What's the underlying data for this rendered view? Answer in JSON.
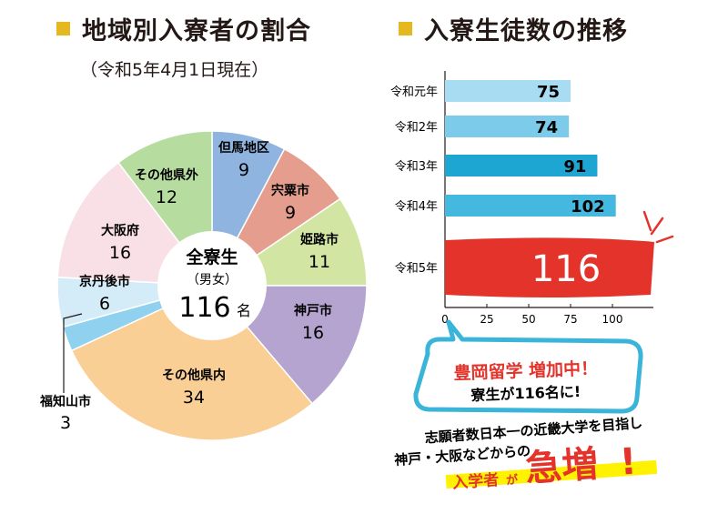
{
  "pie_section": {
    "title": "地域別入寮者の割合",
    "subtitle": "（令和5年4月1日現在）",
    "center_line1": "全寮生",
    "center_line2": "（男女）",
    "center_line3": "116",
    "center_unit": "名"
  },
  "bar_section": {
    "title": "入寮生徒数の推移"
  },
  "callout": {
    "bubble_line1": "豊岡留学 増加中！",
    "bubble_line2": "寮生が116名に!",
    "bottom_line1": "志願者数日本一の近畿大学を目指し",
    "bottom_line2": "神戸・大阪などからの",
    "bottom_line3a": "入学者",
    "bottom_line3b": "が",
    "bottom_line3c": "急増",
    "bottom_line3d": "!"
  },
  "colors": {
    "accent": "#e5b81f",
    "bar": "#45b8e0",
    "bar_highlight": "#e4332b",
    "bubble_border": "#3ab4d9",
    "underline": "#fff200"
  },
  "chart_data": [
    {
      "type": "pie",
      "title": "地域別入寮者の割合",
      "total": 116,
      "slices": [
        {
          "label": "但馬地区",
          "value": 9,
          "color": "#8eb4df"
        },
        {
          "label": "宍粟市",
          "value": 9,
          "color": "#e59e8d"
        },
        {
          "label": "姫路市",
          "value": 11,
          "color": "#d3e5a3"
        },
        {
          "label": "神戸市",
          "value": 16,
          "color": "#b4a4cf"
        },
        {
          "label": "その他県内",
          "value": 34,
          "color": "#f9cf95"
        },
        {
          "label": "福知山市",
          "value": 3,
          "color": "#8fd1ee"
        },
        {
          "label": "京丹後市",
          "value": 6,
          "color": "#d3ecf8"
        },
        {
          "label": "大阪府",
          "value": 16,
          "color": "#f9dfe6"
        },
        {
          "label": "その他県外",
          "value": 12,
          "color": "#b7dca0"
        }
      ]
    },
    {
      "type": "bar",
      "orientation": "horizontal",
      "title": "入寮生徒数の推移",
      "categories": [
        "令和元年",
        "令和2年",
        "令和3年",
        "令和4年",
        "令和5年"
      ],
      "values": [
        75,
        74,
        91,
        102,
        116
      ],
      "colors": [
        "#a8dcf3",
        "#7ccbea",
        "#1ea6d3",
        "#45b8e0",
        "#e4332b"
      ],
      "xlim": [
        0,
        120
      ],
      "xticks": [
        0,
        25,
        50,
        75,
        100
      ]
    }
  ]
}
